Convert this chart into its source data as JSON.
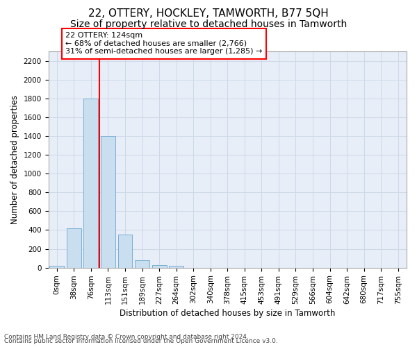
{
  "title": "22, OTTERY, HOCKLEY, TAMWORTH, B77 5QH",
  "subtitle": "Size of property relative to detached houses in Tamworth",
  "xlabel": "Distribution of detached houses by size in Tamworth",
  "ylabel": "Number of detached properties",
  "categories": [
    "0sqm",
    "38sqm",
    "76sqm",
    "113sqm",
    "151sqm",
    "189sqm",
    "227sqm",
    "264sqm",
    "302sqm",
    "340sqm",
    "378sqm",
    "415sqm",
    "453sqm",
    "491sqm",
    "529sqm",
    "566sqm",
    "604sqm",
    "642sqm",
    "680sqm",
    "717sqm",
    "755sqm"
  ],
  "values": [
    20,
    420,
    1800,
    1400,
    350,
    80,
    30,
    20,
    0,
    0,
    0,
    0,
    0,
    0,
    0,
    0,
    0,
    0,
    0,
    0,
    0
  ],
  "bar_color": "#c9dff0",
  "bar_edge_color": "#7aafd4",
  "grid_color": "#cdd8e8",
  "background_color": "#e8eef8",
  "red_line_x": 2.5,
  "marker_label": "22 OTTERY: 124sqm",
  "annotation_line1": "← 68% of detached houses are smaller (2,766)",
  "annotation_line2": "31% of semi-detached houses are larger (1,285) →",
  "ylim": [
    0,
    2300
  ],
  "yticks": [
    0,
    200,
    400,
    600,
    800,
    1000,
    1200,
    1400,
    1600,
    1800,
    2000,
    2200
  ],
  "footer_line1": "Contains HM Land Registry data © Crown copyright and database right 2024.",
  "footer_line2": "Contains public sector information licensed under the Open Government Licence v3.0.",
  "title_fontsize": 11,
  "subtitle_fontsize": 10,
  "axis_label_fontsize": 8.5,
  "tick_fontsize": 7.5,
  "annotation_fontsize": 8,
  "footer_fontsize": 6.5
}
